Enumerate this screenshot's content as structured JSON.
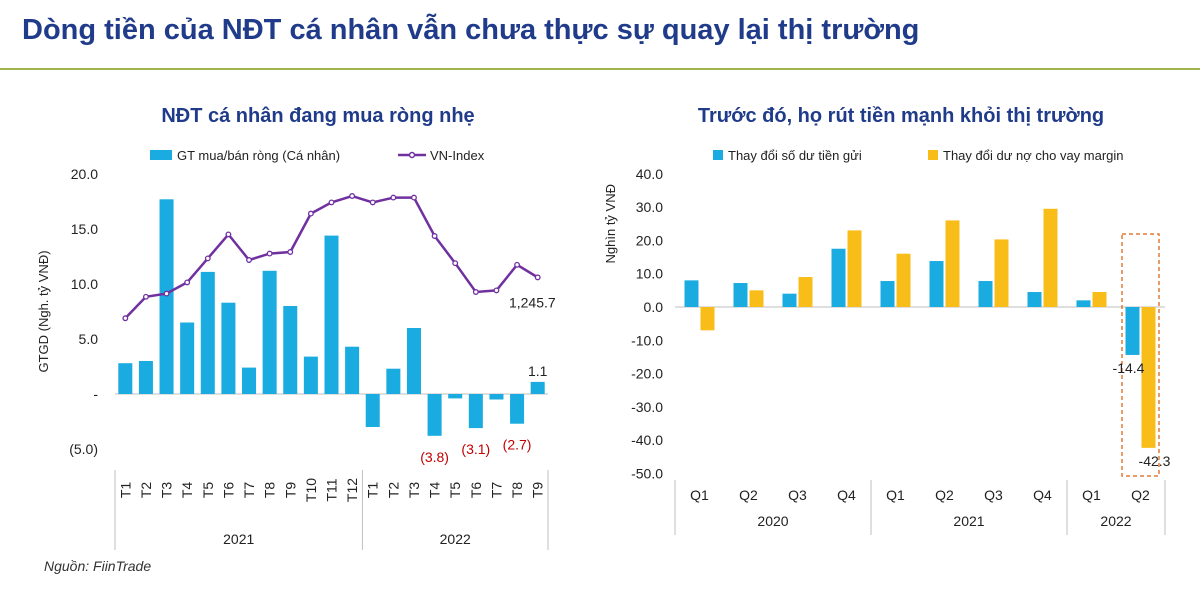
{
  "page": {
    "title": "Dòng tiền của NĐT cá nhân vẫn chưa thực sự quay lại thị trường",
    "source": "Nguồn: FiinTrade"
  },
  "colors": {
    "bar_blue": "#1aace0",
    "bar_orange": "#f8bd18",
    "line_purple": "#7030a0",
    "title_blue": "#1f3b8a",
    "rule_green": "#9fb44a",
    "neg_label_red": "#c00000"
  },
  "chart_data": [
    {
      "type": "bar",
      "title": "NĐT cá nhân đang mua ròng nhẹ",
      "ylabel": "GTGD (Ngh. tỷ VNĐ)",
      "ylim": [
        -5,
        20
      ],
      "yticks": [
        "20.0",
        "15.0",
        "10.0",
        "5.0",
        "-",
        "(5.0)"
      ],
      "categories": [
        "T1",
        "T2",
        "T3",
        "T4",
        "T5",
        "T6",
        "T7",
        "T8",
        "T9",
        "T10",
        "T11",
        "T12",
        "T1",
        "T2",
        "T3",
        "T4",
        "T5",
        "T6",
        "T7",
        "T8",
        "T9"
      ],
      "groups": [
        {
          "label": "2021",
          "count": 12
        },
        {
          "label": "2022",
          "count": 9
        }
      ],
      "series": [
        {
          "name": "GT mua/bán ròng (Cá nhân)",
          "type": "bar",
          "values": [
            2.8,
            3.0,
            17.7,
            6.5,
            11.1,
            8.3,
            2.4,
            11.2,
            8.0,
            3.4,
            14.4,
            4.3,
            -3.0,
            2.3,
            6.0,
            -3.8,
            -0.4,
            -3.1,
            -0.5,
            -2.7,
            1.1
          ]
        },
        {
          "name": "VN-Index",
          "type": "line",
          "axis": "secondary",
          "values": [
            1118,
            1185,
            1195,
            1230,
            1305,
            1380,
            1300,
            1320,
            1325,
            1445,
            1480,
            1500,
            1480,
            1495,
            1495,
            1375,
            1290,
            1200,
            1205,
            1285,
            1245.7
          ]
        }
      ],
      "data_labels": [
        {
          "index": 15,
          "text": "(3.8)"
        },
        {
          "index": 17,
          "text": "(3.1)"
        },
        {
          "index": 19,
          "text": "(2.7)"
        },
        {
          "index": 20,
          "text": "1.1"
        }
      ],
      "line_end_label": "1,245.7",
      "legend": "top"
    },
    {
      "type": "bar",
      "title": "Trước đó, họ rút tiền mạnh khỏi thị trường",
      "ylabel": "Nghìn tỷ VNĐ",
      "ylim": [
        -50,
        40
      ],
      "yticks": [
        "40.0",
        "30.0",
        "20.0",
        "10.0",
        "0.0",
        "-10.0",
        "-20.0",
        "-30.0",
        "-40.0",
        "-50.0"
      ],
      "categories": [
        "Q1",
        "Q2",
        "Q3",
        "Q4",
        "Q1",
        "Q2",
        "Q3",
        "Q4",
        "Q1",
        "Q2"
      ],
      "groups": [
        {
          "label": "2020",
          "count": 4
        },
        {
          "label": "2021",
          "count": 4
        },
        {
          "label": "2022",
          "count": 2
        }
      ],
      "series": [
        {
          "name": "Thay đổi số dư tiền gửi",
          "values": [
            8.0,
            7.2,
            4.0,
            17.5,
            7.8,
            13.8,
            7.8,
            4.5,
            2.0,
            -14.4
          ]
        },
        {
          "name": "Thay đổi dư nợ cho vay margin",
          "values": [
            -7.0,
            5.0,
            9.0,
            23.0,
            16.0,
            26.0,
            20.3,
            29.5,
            4.5,
            -42.3
          ]
        }
      ],
      "data_labels": [
        {
          "series": 0,
          "index": 9,
          "text": "-14.4"
        },
        {
          "series": 1,
          "index": 9,
          "text": "-42.3"
        }
      ],
      "highlight_index": 9,
      "legend": "top"
    }
  ]
}
